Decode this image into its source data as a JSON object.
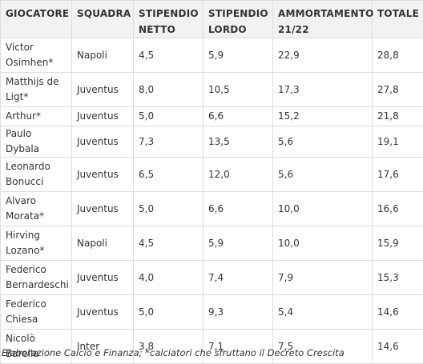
{
  "table": {
    "headers": {
      "giocatore": "GIOCATORE",
      "squadra": "SQUADRA",
      "stipendio_netto": "STIPENDIO NETTO",
      "stipendio_lordo": "STIPENDIO LORDO",
      "ammortamento": "AMMORTAMENTO 21/22",
      "totale": "TOTALE"
    },
    "rows": [
      {
        "giocatore": "Victor Osimhen*",
        "squadra": "Napoli",
        "netto": "4,5",
        "lordo": "5,9",
        "ammortamento": "22,9",
        "totale": "28,8"
      },
      {
        "giocatore": "Matthijs de Ligt*",
        "squadra": "Juventus",
        "netto": "8,0",
        "lordo": "10,5",
        "ammortamento": "17,3",
        "totale": "27,8"
      },
      {
        "giocatore": "Arthur*",
        "squadra": "Juventus",
        "netto": "5,0",
        "lordo": "6,6",
        "ammortamento": "15,2",
        "totale": "21,8"
      },
      {
        "giocatore": "Paulo Dybala",
        "squadra": "Juventus",
        "netto": "7,3",
        "lordo": "13,5",
        "ammortamento": "5,6",
        "totale": "19,1"
      },
      {
        "giocatore": "Leonardo Bonucci",
        "squadra": "Juventus",
        "netto": "6,5",
        "lordo": "12,0",
        "ammortamento": "5,6",
        "totale": "17,6"
      },
      {
        "giocatore": "Alvaro Morata*",
        "squadra": "Juventus",
        "netto": "5,0",
        "lordo": "6,6",
        "ammortamento": "10,0",
        "totale": "16,6"
      },
      {
        "giocatore": "Hirving Lozano*",
        "squadra": "Napoli",
        "netto": "4,5",
        "lordo": "5,9",
        "ammortamento": "10,0",
        "totale": "15,9"
      },
      {
        "giocatore": "Federico Bernardeschi",
        "squadra": "Juventus",
        "netto": "4,0",
        "lordo": "7,4",
        "ammortamento": "7,9",
        "totale": "15,3"
      },
      {
        "giocatore": "Federico Chiesa",
        "squadra": "Juventus",
        "netto": "5,0",
        "lordo": "9,3",
        "ammortamento": "5,4",
        "totale": "14,6"
      },
      {
        "giocatore": "Nicolò Barella",
        "squadra": "Inter",
        "netto": "3,8",
        "lordo": "7,1",
        "ammortamento": "7,5",
        "totale": "14,6"
      }
    ]
  },
  "caption": "Elaborazione Calcio e Finanza; *calciatori che sfruttano il Decreto Crescita"
}
